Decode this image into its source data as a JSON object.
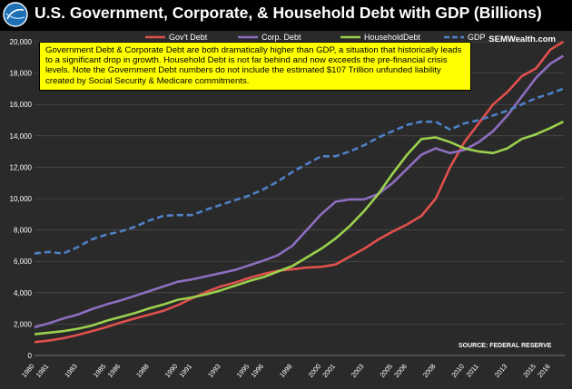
{
  "title": "U.S. Government, Corporate, & Household Debt with GDP (Billions)",
  "brand": "SEMWealth.com",
  "annotation": "Government Debt & Corporate Debt are both dramatically higher than GDP, a situation that historically leads to a significant drop in growth. Household Debt is not far behind and now exceeds the pre-financial crisis levels. Note the Government Debt numbers do not include the estimated $107 Trillion unfunded liability created by Social Security & Medicare commitments.",
  "source": "SOURCE: FEDERAL RESERVE",
  "colors": {
    "background": "#2a2a2a",
    "govt": "#e0504d",
    "corp": "#8e6ec0",
    "household": "#9bd14d",
    "gdp": "#4f81c7",
    "annotation_bg": "#ffff00"
  },
  "logo_icon": "globe-icon",
  "chart_data": {
    "type": "line",
    "title": "U.S. Government, Corporate, & Household Debt with GDP (Billions)",
    "xlabel": "",
    "ylabel": "",
    "ylim": [
      0,
      20000
    ],
    "xlim": [
      1980,
      2017
    ],
    "yticks": [
      0,
      2000,
      4000,
      6000,
      8000,
      10000,
      12000,
      14000,
      16000,
      18000,
      20000
    ],
    "ytick_labels": [
      "0",
      "2,000",
      "4,000",
      "6,000",
      "8,000",
      "10,000",
      "12,000",
      "14,000",
      "16,000",
      "18,000",
      "20,000"
    ],
    "xticks": [
      1980,
      1981,
      1983,
      1985,
      1986,
      1988,
      1990,
      1991,
      1993,
      1995,
      1996,
      1998,
      2000,
      2001,
      2003,
      2005,
      2006,
      2008,
      2010,
      2011,
      2013,
      2015,
      2016
    ],
    "xtick_labels": [
      "1980",
      "1981",
      "1983",
      "1985",
      "1986",
      "1988",
      "1990",
      "1991",
      "1993",
      "1995",
      "1996",
      "1998",
      "2000",
      "2001",
      "2003",
      "2005",
      "2006",
      "2008",
      "2010",
      "2011",
      "2013",
      "2015",
      "2016"
    ],
    "grid": true,
    "legend_position": "top",
    "series": [
      {
        "name": "Gov't Debt",
        "x": [
          1980,
          1981,
          1982,
          1983,
          1984,
          1985,
          1986,
          1987,
          1988,
          1989,
          1990,
          1991,
          1992,
          1993,
          1994,
          1995,
          1996,
          1997,
          1998,
          1999,
          2000,
          2001,
          2002,
          2003,
          2004,
          2005,
          2006,
          2007,
          2008,
          2009,
          2010,
          2011,
          2012,
          2013,
          2014,
          2015,
          2016,
          2016.9
        ],
        "values": [
          850,
          950,
          1100,
          1300,
          1550,
          1800,
          2100,
          2350,
          2600,
          2850,
          3200,
          3650,
          4050,
          4400,
          4650,
          4950,
          5200,
          5400,
          5500,
          5600,
          5650,
          5800,
          6300,
          6800,
          7400,
          7900,
          8350,
          8900,
          10000,
          12000,
          13600,
          14800,
          16000,
          16800,
          17800,
          18300,
          19500,
          20000
        ]
      },
      {
        "name": "Corp. Debt",
        "x": [
          1980,
          1981,
          1982,
          1983,
          1984,
          1985,
          1986,
          1987,
          1988,
          1989,
          1990,
          1991,
          1992,
          1993,
          1994,
          1995,
          1996,
          1997,
          1998,
          1999,
          2000,
          2001,
          2002,
          2003,
          2004,
          2005,
          2006,
          2007,
          2008,
          2009,
          2010,
          2011,
          2012,
          2013,
          2014,
          2015,
          2016,
          2016.9
        ],
        "values": [
          1800,
          2050,
          2350,
          2600,
          2950,
          3250,
          3500,
          3800,
          4100,
          4400,
          4700,
          4850,
          5050,
          5250,
          5450,
          5750,
          6050,
          6400,
          7000,
          8000,
          9000,
          9800,
          9950,
          9950,
          10300,
          11000,
          11900,
          12800,
          13200,
          12900,
          13100,
          13600,
          14300,
          15300,
          16500,
          17700,
          18600,
          19100
        ]
      },
      {
        "name": "HouseholdDebt",
        "x": [
          1980,
          1981,
          1982,
          1983,
          1984,
          1985,
          1986,
          1987,
          1988,
          1989,
          1990,
          1991,
          1992,
          1993,
          1994,
          1995,
          1996,
          1997,
          1998,
          1999,
          2000,
          2001,
          2002,
          2003,
          2004,
          2005,
          2006,
          2007,
          2008,
          2009,
          2010,
          2011,
          2012,
          2013,
          2014,
          2015,
          2016,
          2016.9
        ],
        "values": [
          1350,
          1450,
          1550,
          1700,
          1900,
          2200,
          2450,
          2700,
          3000,
          3250,
          3550,
          3700,
          3900,
          4150,
          4450,
          4750,
          5000,
          5350,
          5700,
          6250,
          6800,
          7450,
          8250,
          9200,
          10300,
          11600,
          12800,
          13800,
          13900,
          13600,
          13200,
          13000,
          12900,
          13200,
          13800,
          14100,
          14500,
          14900
        ]
      },
      {
        "name": "GDP",
        "x": [
          1980,
          1981,
          1982,
          1983,
          1984,
          1985,
          1986,
          1987,
          1988,
          1989,
          1990,
          1991,
          1992,
          1993,
          1994,
          1995,
          1996,
          1997,
          1998,
          1999,
          2000,
          2001,
          2002,
          2003,
          2004,
          2005,
          2006,
          2007,
          2008,
          2009,
          2010,
          2011,
          2012,
          2013,
          2014,
          2015,
          2016,
          2016.9
        ],
        "values": [
          6500,
          6600,
          6500,
          6900,
          7400,
          7700,
          7900,
          8200,
          8600,
          8900,
          8950,
          8950,
          9300,
          9600,
          9900,
          10200,
          10600,
          11100,
          11700,
          12200,
          12700,
          12700,
          13000,
          13400,
          13900,
          14300,
          14700,
          14900,
          14900,
          14400,
          14800,
          15000,
          15300,
          15600,
          16000,
          16400,
          16700,
          17000
        ],
        "dashed": true
      }
    ]
  }
}
